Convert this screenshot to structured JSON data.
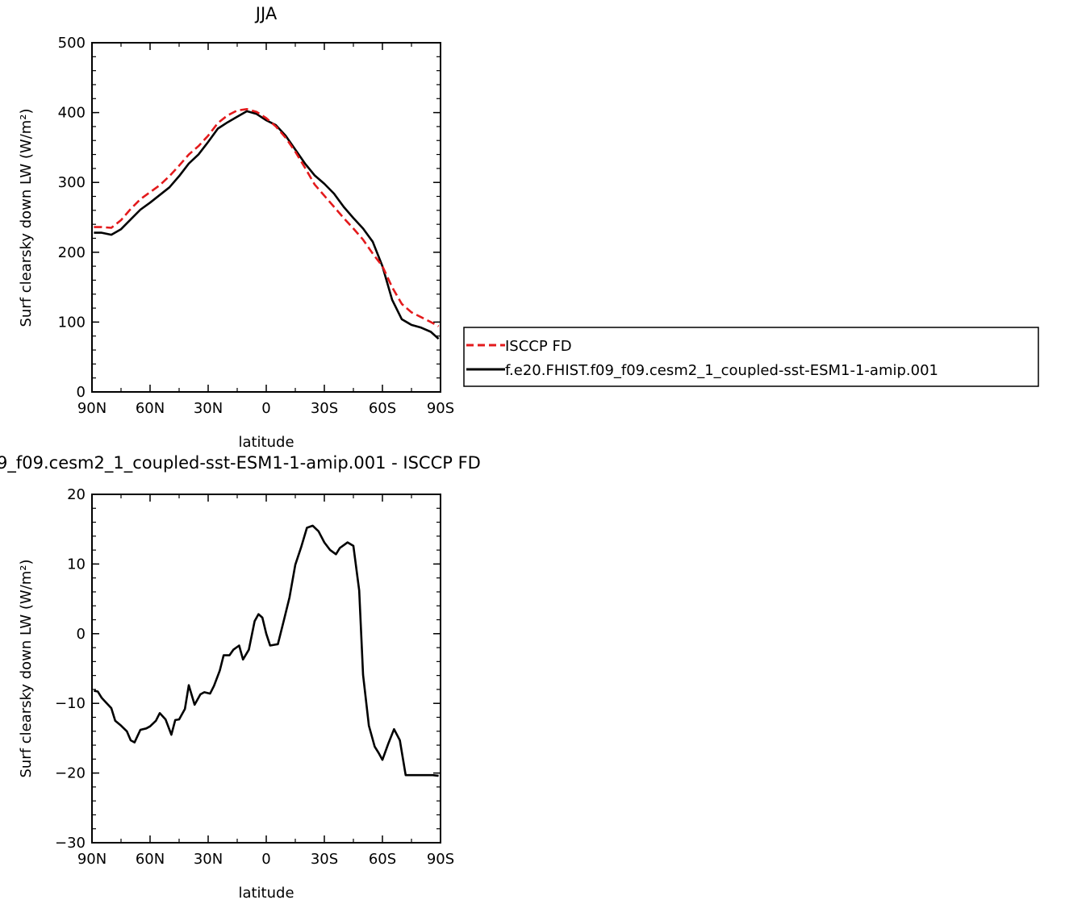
{
  "colors": {
    "obs": "#e31a1c",
    "model": "#000000",
    "frame": "#000000"
  },
  "legend": {
    "entries": [
      {
        "label": "ISCCP FD",
        "color": "#e31a1c",
        "dash": true
      },
      {
        "label": "f.e20.FHIST.f09_f09.cesm2_1_coupled-sst-ESM1-1-amip.001",
        "color": "#000000",
        "dash": false
      }
    ]
  },
  "chart_data": [
    {
      "type": "line",
      "title": "JJA",
      "xlabel": "latitude",
      "ylabel": "Surf clearsky down LW (W/m²)",
      "xlim": [
        90,
        -90
      ],
      "ylim": [
        0,
        500
      ],
      "xticks": [
        90,
        60,
        30,
        0,
        -30,
        -60,
        -90
      ],
      "xticklabels": [
        "90N",
        "60N",
        "30N",
        "0",
        "30S",
        "60S",
        "90S"
      ],
      "yticks": [
        0,
        100,
        200,
        300,
        400,
        500
      ],
      "yticklabels": [
        "0",
        "100",
        "200",
        "300",
        "400",
        "500"
      ],
      "series": [
        {
          "name": "ISCCP FD",
          "x": [
            89,
            85,
            80,
            75,
            70,
            65,
            60,
            55,
            50,
            45,
            40,
            35,
            30,
            25,
            20,
            15,
            10,
            5,
            0,
            -5,
            -10,
            -15,
            -20,
            -25,
            -30,
            -35,
            -40,
            -45,
            -50,
            -55,
            -60,
            -65,
            -70,
            -75,
            -80,
            -85,
            -89
          ],
          "y": [
            236,
            236,
            235,
            246,
            262,
            276,
            286,
            296,
            309,
            324,
            340,
            352,
            367,
            385,
            396,
            403,
            405,
            401,
            392,
            380,
            364,
            344,
            321,
            297,
            281,
            265,
            249,
            234,
            218,
            198,
            180,
            150,
            126,
            114,
            107,
            100,
            94
          ]
        },
        {
          "name": "f.e20.FHIST.f09_f09.cesm2_1_coupled-sst-ESM1-1-amip.001",
          "x": [
            89,
            85,
            80,
            75,
            70,
            65,
            60,
            55,
            50,
            45,
            40,
            35,
            30,
            25,
            20,
            15,
            10,
            5,
            0,
            -5,
            -10,
            -15,
            -20,
            -25,
            -30,
            -35,
            -40,
            -45,
            -50,
            -55,
            -60,
            -65,
            -70,
            -75,
            -80,
            -85,
            -89
          ],
          "y": [
            228,
            228,
            225,
            233,
            247,
            261,
            271,
            282,
            293,
            309,
            327,
            340,
            358,
            377,
            386,
            394,
            402,
            398,
            389,
            382,
            367,
            347,
            327,
            310,
            298,
            284,
            265,
            249,
            234,
            215,
            180,
            132,
            104,
            96,
            92,
            86,
            76
          ]
        }
      ]
    },
    {
      "type": "line",
      "title": "9_f09.cesm2_1_coupled-sst-ESM1-1-amip.001 - ISCCP FD",
      "xlabel": "latitude",
      "ylabel": "Surf clearsky down LW (W/m²)",
      "xlim": [
        90,
        -90
      ],
      "ylim": [
        -30,
        20
      ],
      "xticks": [
        90,
        60,
        30,
        0,
        -30,
        -60,
        -90
      ],
      "xticklabels": [
        "90N",
        "60N",
        "30N",
        "0",
        "30S",
        "60S",
        "90S"
      ],
      "yticks": [
        -30,
        -20,
        -10,
        0,
        10,
        20
      ],
      "yticklabels": [
        "−30",
        "−20",
        "−10",
        "0",
        "10",
        "20"
      ],
      "series": [
        {
          "name": "",
          "x": [
            89,
            87,
            85,
            83,
            80,
            78,
            75,
            72,
            70,
            68,
            65,
            62,
            60,
            57,
            55,
            52,
            49,
            47,
            45,
            42,
            40,
            37,
            34,
            32,
            29,
            27,
            24,
            22,
            19,
            17,
            14,
            12,
            9,
            6,
            4,
            2,
            0,
            -2,
            -4,
            -6,
            -9,
            -12,
            -15,
            -18,
            -21,
            -24,
            -27,
            -30,
            -33,
            -36,
            -38,
            -40,
            -42,
            -45,
            -48,
            -50,
            -53,
            -56,
            -58,
            -60,
            -63,
            -66,
            -69,
            -72,
            -75,
            -78,
            -81,
            -84,
            -86,
            -89
          ],
          "y": [
            -8.2,
            -8.3,
            -9.2,
            -9.8,
            -10.7,
            -12.5,
            -13.2,
            -14,
            -15.3,
            -15.6,
            -13.8,
            -13.6,
            -13.3,
            -12.5,
            -11.4,
            -12.3,
            -14.5,
            -12.4,
            -12.3,
            -10.8,
            -7.4,
            -10.2,
            -8.7,
            -8.4,
            -8.6,
            -7.5,
            -5.3,
            -3.1,
            -3.1,
            -2.3,
            -1.7,
            -3.7,
            -2.3,
            1.8,
            2.8,
            2.3,
            0,
            -1.7,
            -1.6,
            -1.5,
            1.8,
            5.2,
            9.9,
            12.4,
            15.2,
            15.5,
            14.7,
            13.1,
            12.0,
            11.4,
            12.3,
            12.7,
            13.1,
            12.6,
            6.2,
            -5.9,
            -13.2,
            -16.2,
            -17.1,
            -18.1,
            -15.8,
            -13.7,
            -15.3,
            -20.3,
            -20.3,
            -20.3,
            -20.3,
            -20.3,
            -20.3,
            -20.4
          ]
        }
      ]
    }
  ]
}
